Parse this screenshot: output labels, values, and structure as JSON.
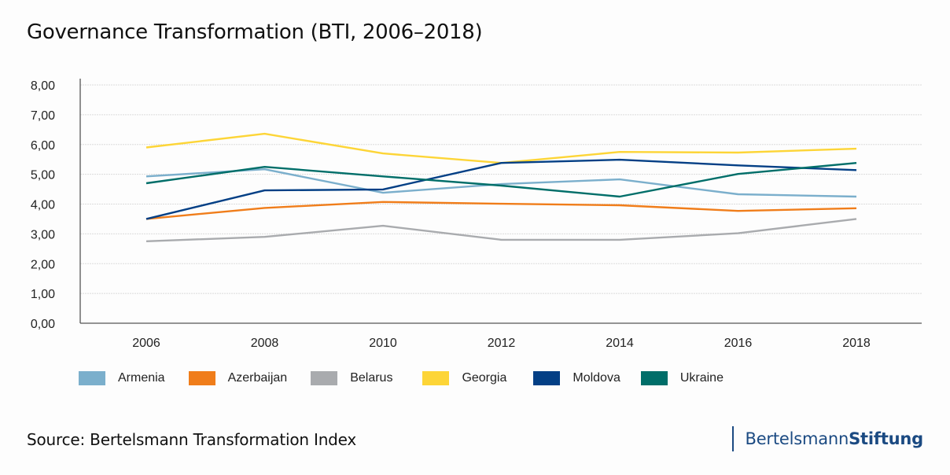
{
  "title": "Governance Transformation (BTI, 2006–2018)",
  "source": "Source: Bertelsmann Transformation Index",
  "brand": {
    "light": "Bertelsmann",
    "bold": "Stiftung",
    "color": "#1b4a82"
  },
  "chart_data": {
    "type": "line",
    "title": "Governance Transformation (BTI, 2006–2018)",
    "xlabel": "",
    "ylabel": "",
    "x": [
      "2006",
      "2008",
      "2010",
      "2012",
      "2014",
      "2016",
      "2018"
    ],
    "ylim": [
      0,
      8
    ],
    "yticks": [
      0,
      1,
      2,
      3,
      4,
      5,
      6,
      7,
      8
    ],
    "ytick_labels": [
      "0,00",
      "1,00",
      "2,00",
      "3,00",
      "4,00",
      "5,00",
      "6,00",
      "7,00",
      "8,00"
    ],
    "grid": true,
    "legend_position": "bottom",
    "series": [
      {
        "name": "Armenia",
        "color": "#7bafcc",
        "values": [
          4.93,
          5.17,
          4.38,
          4.67,
          4.83,
          4.33,
          4.25
        ]
      },
      {
        "name": "Azerbaijan",
        "color": "#f07d1a",
        "values": [
          3.5,
          3.87,
          4.07,
          4.01,
          3.96,
          3.77,
          3.86
        ]
      },
      {
        "name": "Belarus",
        "color": "#a9abae",
        "values": [
          2.75,
          2.9,
          3.27,
          2.8,
          2.8,
          3.02,
          3.5
        ]
      },
      {
        "name": "Georgia",
        "color": "#fdd537",
        "values": [
          5.9,
          6.36,
          5.7,
          5.38,
          5.75,
          5.73,
          5.86
        ]
      },
      {
        "name": "Moldova",
        "color": "#033f85",
        "values": [
          3.5,
          4.46,
          4.49,
          5.38,
          5.49,
          5.3,
          5.14
        ]
      },
      {
        "name": "Ukraine",
        "color": "#006e69",
        "values": [
          4.7,
          5.25,
          4.93,
          4.62,
          4.25,
          5.01,
          5.38
        ]
      }
    ]
  }
}
